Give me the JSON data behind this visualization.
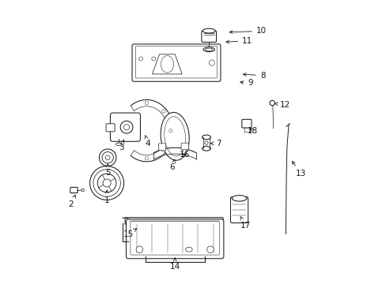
{
  "bg_color": "#ffffff",
  "line_color": "#1a1a1a",
  "fig_width": 4.89,
  "fig_height": 3.6,
  "dpi": 100,
  "label_fontsize": 7.5,
  "lw": 0.75,
  "labels": {
    "1": [
      0.195,
      0.295,
      0.195,
      0.34
    ],
    "2": [
      0.068,
      0.28,
      0.085,
      0.315
    ],
    "3": [
      0.245,
      0.48,
      0.255,
      0.51
    ],
    "4": [
      0.34,
      0.495,
      0.33,
      0.525
    ],
    "5": [
      0.198,
      0.39,
      0.198,
      0.425
    ],
    "6": [
      0.425,
      0.41,
      0.435,
      0.44
    ],
    "7": [
      0.59,
      0.495,
      0.558,
      0.495
    ],
    "8": [
      0.745,
      0.735,
      0.665,
      0.74
    ],
    "9": [
      0.7,
      0.708,
      0.655,
      0.713
    ],
    "10": [
      0.74,
      0.892,
      0.617,
      0.888
    ],
    "11": [
      0.69,
      0.858,
      0.605,
      0.853
    ],
    "12": [
      0.822,
      0.632,
      0.785,
      0.636
    ],
    "13": [
      0.88,
      0.388,
      0.842,
      0.44
    ],
    "14": [
      0.435,
      0.06,
      0.435,
      0.092
    ],
    "15": [
      0.27,
      0.175,
      0.302,
      0.195
    ],
    "16": [
      0.468,
      0.455,
      0.455,
      0.465
    ],
    "17": [
      0.683,
      0.205,
      0.665,
      0.238
    ],
    "18": [
      0.71,
      0.54,
      0.695,
      0.555
    ]
  }
}
